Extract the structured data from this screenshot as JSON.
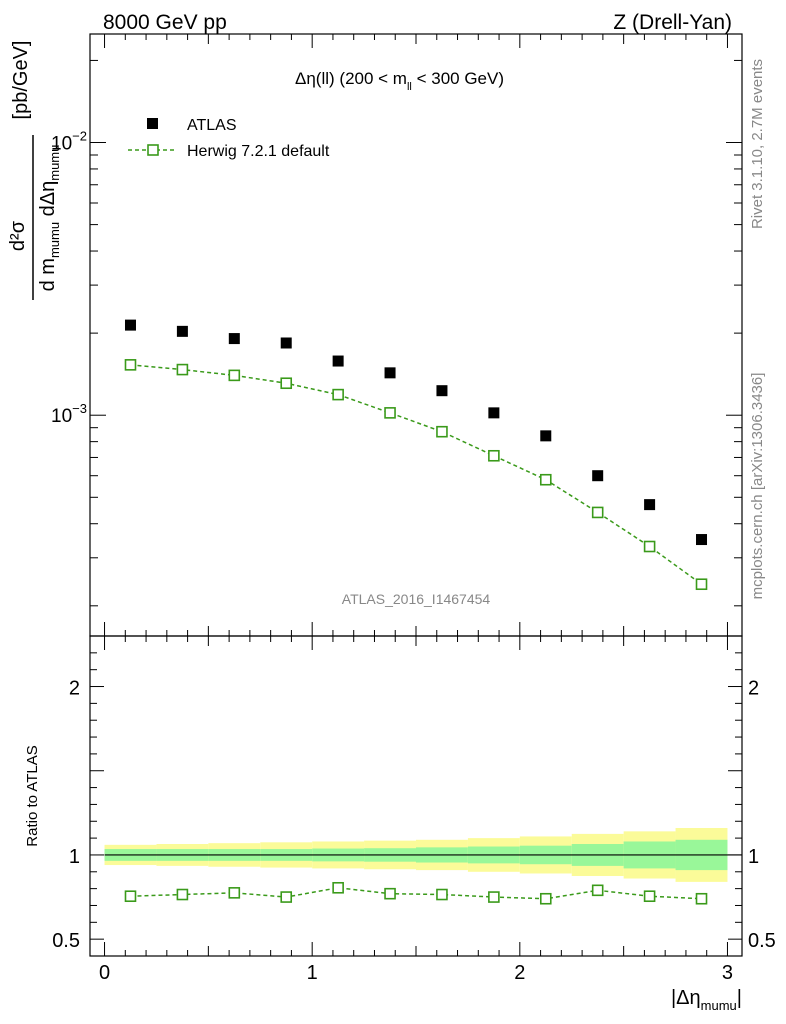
{
  "header": {
    "left": "8000 GeV pp",
    "right": "Z (Drell-Yan)"
  },
  "side_labels": {
    "rivet": "Rivet 3.1.10,  2.7M events",
    "mcplots": "mcplots.cern.ch [arXiv:1306.3436]"
  },
  "watermark": "ATLAS_2016_I1467454",
  "colors": {
    "data": "#000000",
    "mc": "#3a9a1a",
    "band_inner": "#99f799",
    "band_outer": "#fbfb99"
  },
  "chart_data": [
    {
      "type": "scatter",
      "title": "Δη(ll) (200 < m_ll < 300 GeV)",
      "title_parts": {
        "main": "Δη(ll) (200 < m",
        "sub": "ll",
        "tail": " < 300 GeV)"
      },
      "ylabel": "dσ / d m_mumu dΔη_mumu [pb/GeV]",
      "ylabel_parts": {
        "num": "d²σ",
        "den_a": "d m",
        "den_sub1": "mumu",
        "den_b": " dΔη",
        "den_sub2": "mumu",
        "unit": "[pb/GeV]"
      },
      "yscale": "log",
      "ylim": [
        0.000155,
        0.025
      ],
      "xlim": [
        -0.07,
        3.07
      ],
      "ytick_labels": [
        {
          "value": 0.01,
          "base": "10",
          "exp": "−2"
        },
        {
          "value": 0.001,
          "base": "10",
          "exp": "−3"
        }
      ],
      "x": [
        0.125,
        0.375,
        0.625,
        0.875,
        1.125,
        1.375,
        1.625,
        1.875,
        2.125,
        2.375,
        2.625,
        2.875
      ],
      "series": [
        {
          "name": "ATLAS",
          "marker": "filled-square",
          "values": [
            0.00214,
            0.00203,
            0.00191,
            0.00184,
            0.00158,
            0.00143,
            0.00123,
            0.00102,
            0.00084,
            0.0006,
            0.00047,
            0.00035
          ]
        },
        {
          "name": "Herwig 7.2.1 default",
          "marker": "open-square",
          "line": "dashed",
          "values": [
            0.00153,
            0.00147,
            0.0014,
            0.00131,
            0.00119,
            0.00102,
            0.00087,
            0.00071,
            0.00058,
            0.00044,
            0.00033,
            0.00024
          ]
        }
      ],
      "legend": [
        "ATLAS",
        "Herwig 7.2.1 default"
      ],
      "legend_position": "top-left"
    },
    {
      "type": "scatter",
      "ylabel": "Ratio to ATLAS",
      "xlabel": "|Δη_mumu|",
      "xlabel_parts": {
        "main": "|Δη",
        "sub": "mumu",
        "tail": "|"
      },
      "ylim": [
        0.4,
        2.3
      ],
      "xlim": [
        -0.07,
        3.07
      ],
      "ytick_labels": [
        "0.5",
        "1",
        "2"
      ],
      "ytick_values": [
        0.5,
        1,
        2
      ],
      "xtick_labels": [
        "0",
        "1",
        "2",
        "3"
      ],
      "xtick_values": [
        0,
        1,
        2,
        3
      ],
      "x": [
        0.125,
        0.375,
        0.625,
        0.875,
        1.125,
        1.375,
        1.625,
        1.875,
        2.125,
        2.375,
        2.625,
        2.875
      ],
      "bin_edges": [
        0,
        0.25,
        0.5,
        0.75,
        1.0,
        1.25,
        1.5,
        1.75,
        2.0,
        2.25,
        2.5,
        2.75,
        3.0
      ],
      "band_inner": [
        0.035,
        0.035,
        0.035,
        0.035,
        0.038,
        0.04,
        0.045,
        0.05,
        0.055,
        0.065,
        0.08,
        0.09
      ],
      "band_outer": [
        0.06,
        0.065,
        0.07,
        0.075,
        0.08,
        0.085,
        0.09,
        0.1,
        0.11,
        0.125,
        0.14,
        0.16
      ],
      "series": [
        {
          "name": "Herwig 7.2.1 default",
          "marker": "open-square",
          "line": "dashed",
          "values": [
            0.755,
            0.765,
            0.775,
            0.75,
            0.805,
            0.77,
            0.765,
            0.75,
            0.74,
            0.79,
            0.755,
            0.74
          ]
        }
      ]
    }
  ]
}
